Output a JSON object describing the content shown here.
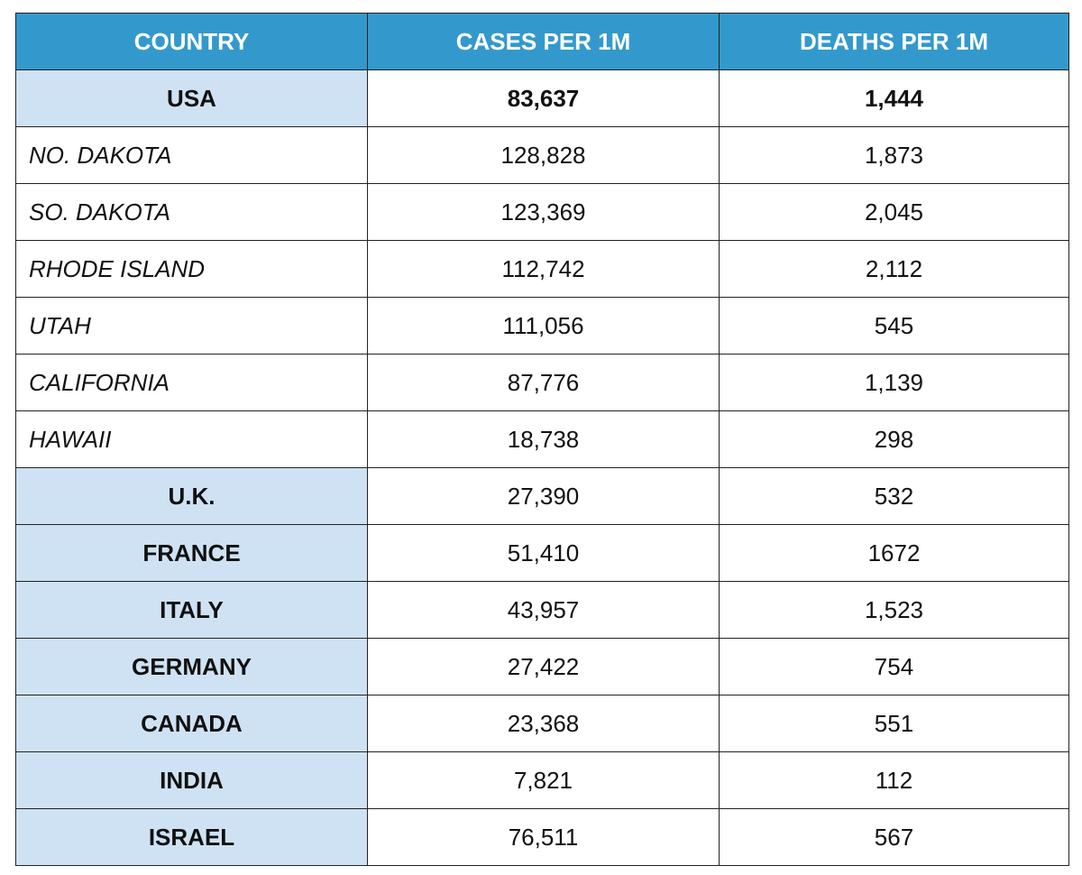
{
  "table": {
    "header": [
      "COUNTRY",
      "CASES PER 1M",
      "DEATHS PER 1M"
    ],
    "rows": [
      [
        "USA",
        "83,637",
        "1,444"
      ],
      [
        "NO. DAKOTA",
        "128,828",
        "1,873"
      ],
      [
        "SO. DAKOTA",
        "123,369",
        "2,045"
      ],
      [
        "RHODE ISLAND",
        "112,742",
        "2,112"
      ],
      [
        "UTAH",
        "111,056",
        "545"
      ],
      [
        "CALIFORNIA",
        "87,776",
        "1,139"
      ],
      [
        "HAWAII",
        "18,738",
        "298"
      ],
      [
        "U.K.",
        "27,390",
        "532"
      ],
      [
        "FRANCE",
        "51,410",
        "1672"
      ],
      [
        "ITALY",
        "43,957",
        "1,523"
      ],
      [
        "GERMANY",
        "27,422",
        "754"
      ],
      [
        "CANADA",
        "23,368",
        "551"
      ],
      [
        "INDIA",
        "7,821",
        "112"
      ],
      [
        "ISRAEL",
        "76,511",
        "567"
      ]
    ]
  }
}
